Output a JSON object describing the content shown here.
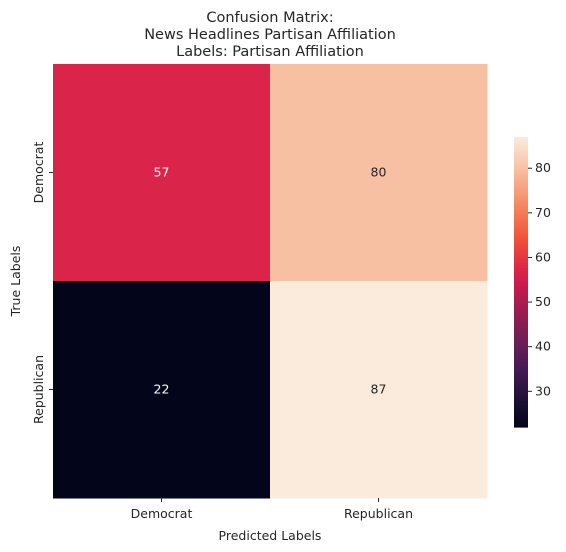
{
  "chart_data": {
    "type": "heatmap",
    "title": [
      "Confusion Matrix:",
      "News Headlines Partisan Affiliation",
      "Labels: Partisan Affiliation"
    ],
    "xlabel": "Predicted Labels",
    "ylabel": "True Labels",
    "x_categories": [
      "Democrat",
      "Republican"
    ],
    "y_categories": [
      "Democrat",
      "Republican"
    ],
    "values": [
      [
        57,
        80
      ],
      [
        22,
        87
      ]
    ],
    "colorbar": {
      "ticks": [
        30,
        40,
        50,
        60,
        70,
        80
      ],
      "range": [
        22,
        87
      ],
      "colormap": "rocket"
    }
  }
}
